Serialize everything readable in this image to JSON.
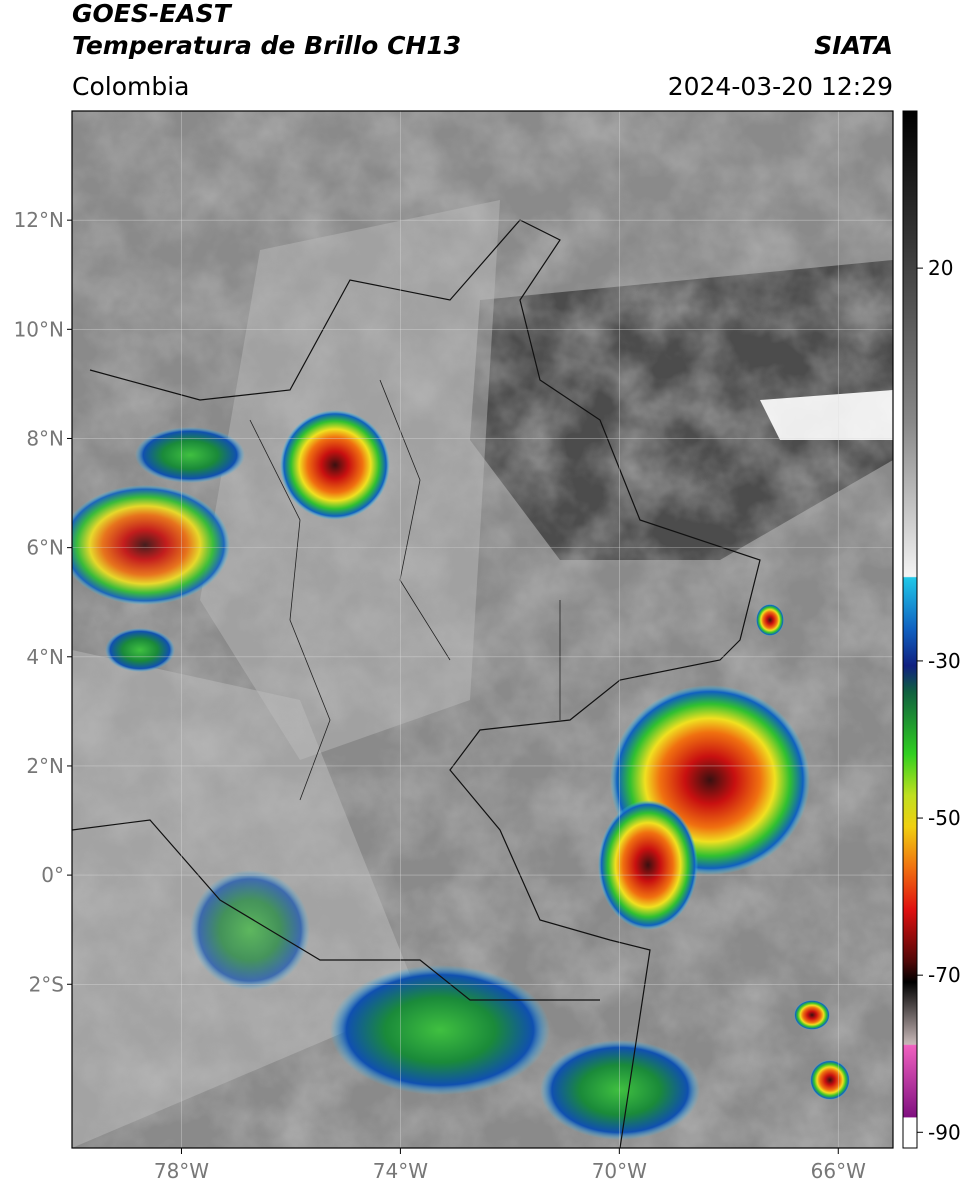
{
  "header": {
    "title": "GOES-EAST",
    "subtitle": "Temperatura de Brillo CH13",
    "source": "SIATA",
    "region": "Colombia",
    "datetime": "2024-03-20 12:29"
  },
  "map": {
    "lonlim": [
      -80,
      -65
    ],
    "latlim": [
      -5,
      14
    ],
    "lonticks": [
      {
        "value": -78,
        "label": "78°W"
      },
      {
        "value": -74,
        "label": "74°W"
      },
      {
        "value": -70,
        "label": "70°W"
      },
      {
        "value": -66,
        "label": "66°W"
      }
    ],
    "latticks": [
      {
        "value": 12,
        "label": "12°N"
      },
      {
        "value": 10,
        "label": "10°N"
      },
      {
        "value": 8,
        "label": "8°N"
      },
      {
        "value": 6,
        "label": "6°N"
      },
      {
        "value": 4,
        "label": "4°N"
      },
      {
        "value": 2,
        "label": "2°N"
      },
      {
        "value": 0,
        "label": "0°"
      },
      {
        "value": -2,
        "label": "2°S"
      }
    ],
    "grid": true
  },
  "colorbar": {
    "lim": [
      -92,
      40
    ],
    "ticks": [
      20,
      -30,
      -50,
      -70,
      -90
    ]
  }
}
